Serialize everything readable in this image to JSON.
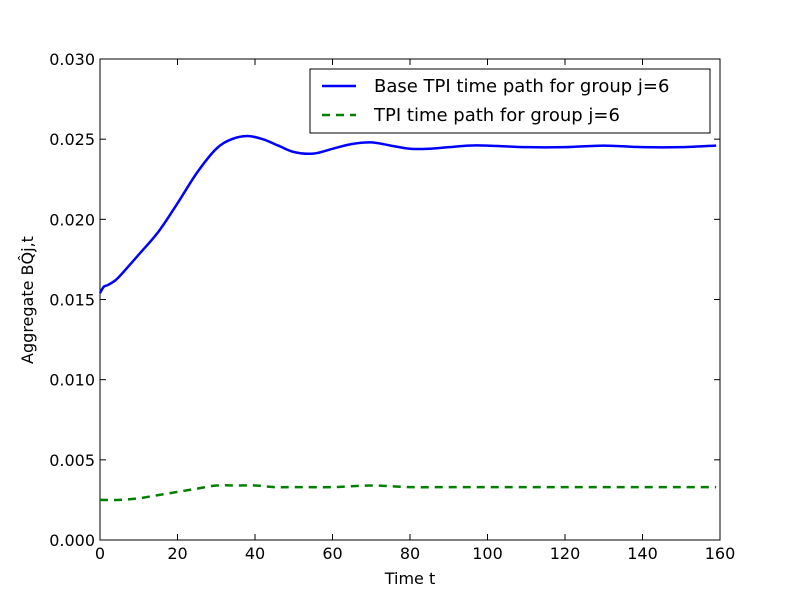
{
  "chart_data": {
    "type": "line",
    "xlabel": "Time t",
    "ylabel": "Aggregate BQ̂j,t",
    "xlim": [
      0,
      160
    ],
    "ylim": [
      0,
      0.03
    ],
    "x_ticks": [
      "0",
      "20",
      "40",
      "60",
      "80",
      "100",
      "120",
      "140",
      "160"
    ],
    "y_ticks": [
      "0.000",
      "0.005",
      "0.010",
      "0.015",
      "0.020",
      "0.025",
      "0.030"
    ],
    "grid": false,
    "legend_position": "top-right",
    "series": [
      {
        "name": "Base TPI time path for group j=6",
        "color": "#0000ff",
        "style": "solid",
        "x": [
          0,
          1,
          2,
          4,
          6,
          10,
          15,
          20,
          25,
          30,
          34,
          38,
          42,
          46,
          50,
          55,
          60,
          65,
          70,
          75,
          80,
          85,
          90,
          95,
          100,
          110,
          120,
          130,
          140,
          150,
          159
        ],
        "y": [
          0.0154,
          0.0158,
          0.0159,
          0.0162,
          0.0167,
          0.0178,
          0.0192,
          0.021,
          0.0229,
          0.0244,
          0.025,
          0.0252,
          0.025,
          0.0246,
          0.0242,
          0.0241,
          0.0244,
          0.0247,
          0.0248,
          0.0246,
          0.0244,
          0.0244,
          0.0245,
          0.0246,
          0.0246,
          0.0245,
          0.0245,
          0.0246,
          0.0245,
          0.0245,
          0.0246
        ]
      },
      {
        "name": "TPI time path for group j=6",
        "color": "#008000",
        "style": "dashed",
        "x": [
          0,
          5,
          10,
          15,
          20,
          25,
          30,
          35,
          40,
          45,
          50,
          60,
          70,
          80,
          90,
          100,
          110,
          120,
          130,
          140,
          150,
          159
        ],
        "y": [
          0.0025,
          0.0025,
          0.0026,
          0.0028,
          0.003,
          0.0032,
          0.0034,
          0.0034,
          0.0034,
          0.0033,
          0.0033,
          0.0033,
          0.0034,
          0.0033,
          0.0033,
          0.0033,
          0.0033,
          0.0033,
          0.0033,
          0.0033,
          0.0033,
          0.0033
        ]
      }
    ]
  }
}
